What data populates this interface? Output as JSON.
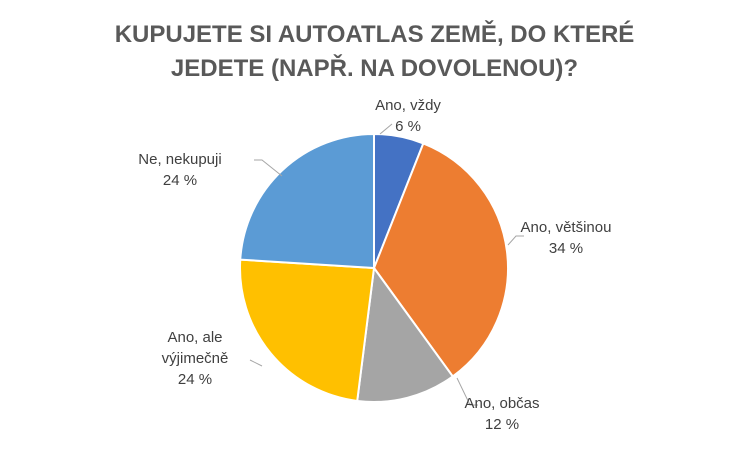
{
  "chart_data": {
    "type": "pie",
    "title_lines": [
      "KUPUJETE SI AUTOATLAS ZEMĚ, DO KTERÉ",
      "JEDETE (NAPŘ. NA DOVOLENOU)?"
    ],
    "slices": [
      {
        "label_lines": [
          "Ano, vždy"
        ],
        "percent_label": "6 %",
        "value": 6,
        "color": "#4472C4"
      },
      {
        "label_lines": [
          "Ano, většinou"
        ],
        "percent_label": "34 %",
        "value": 34,
        "color": "#ED7D31"
      },
      {
        "label_lines": [
          "Ano, občas"
        ],
        "percent_label": "12 %",
        "value": 12,
        "color": "#A5A5A5"
      },
      {
        "label_lines": [
          "Ano, ale",
          "výjimečně"
        ],
        "percent_label": "24 %",
        "value": 24,
        "color": "#FFC000"
      },
      {
        "label_lines": [
          "Ne, nekupuji"
        ],
        "percent_label": "24 %",
        "value": 24,
        "color": "#5B9BD5"
      }
    ],
    "legend": "none",
    "start_angle": "top",
    "direction": "clockwise"
  }
}
